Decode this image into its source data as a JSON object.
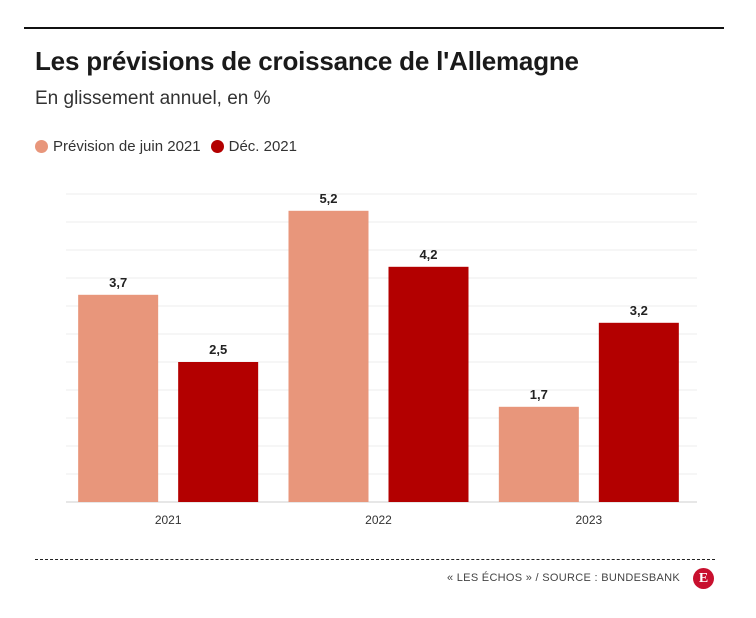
{
  "title": "Les prévisions de croissance de l'Allemagne",
  "subtitle": "En glissement annuel, en %",
  "source": "« LES ÉCHOS » / SOURCE : BUNDESBANK",
  "logo_letter": "E",
  "colors": {
    "series1": "#e8967b",
    "series2": "#b30000",
    "logo": "#c8102e"
  },
  "chart_data": {
    "type": "bar",
    "categories": [
      "2021",
      "2022",
      "2023"
    ],
    "series": [
      {
        "name": "Prévision de juin 2021",
        "values": [
          3.7,
          5.2,
          1.7
        ],
        "labels": [
          "3,7",
          "5,2",
          "1,7"
        ]
      },
      {
        "name": "Déc. 2021",
        "values": [
          2.5,
          4.2,
          3.2
        ],
        "labels": [
          "2,5",
          "4,2",
          "3,2"
        ]
      }
    ],
    "ylim": [
      0,
      5.5
    ],
    "grid": true,
    "legend": "top-left"
  }
}
